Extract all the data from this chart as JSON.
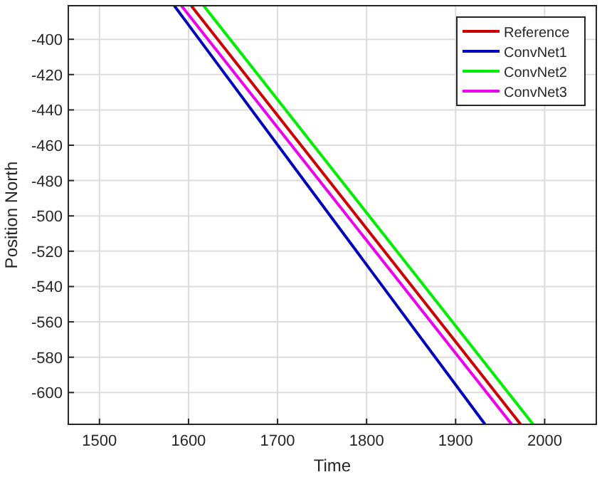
{
  "chart_data": {
    "type": "line",
    "xlabel": "Time",
    "ylabel": "Position North",
    "xlim": [
      1465,
      2058
    ],
    "ylim": [
      -618,
      -381
    ],
    "xticks": [
      1500,
      1600,
      1700,
      1800,
      1900,
      2000
    ],
    "yticks": [
      -600,
      -580,
      -560,
      -540,
      -520,
      -500,
      -480,
      -460,
      -440,
      -420,
      -400
    ],
    "grid": true,
    "legend": "top right",
    "marker": "none",
    "line_style": "solid",
    "series": [
      {
        "name": "Reference",
        "color": "#cc0000",
        "x": [
          1603,
          1973
        ],
        "values": [
          -381,
          -618
        ]
      },
      {
        "name": "ConvNet1",
        "color": "#0000bb",
        "x": [
          1584,
          1933
        ],
        "values": [
          -381,
          -618
        ]
      },
      {
        "name": "ConvNet2",
        "color": "#00ee00",
        "x": [
          1617,
          1987
        ],
        "values": [
          -381,
          -618
        ]
      },
      {
        "name": "ConvNet3",
        "color": "#ee00ee",
        "x": [
          1592,
          1963
        ],
        "values": [
          -381,
          -618
        ]
      }
    ]
  }
}
